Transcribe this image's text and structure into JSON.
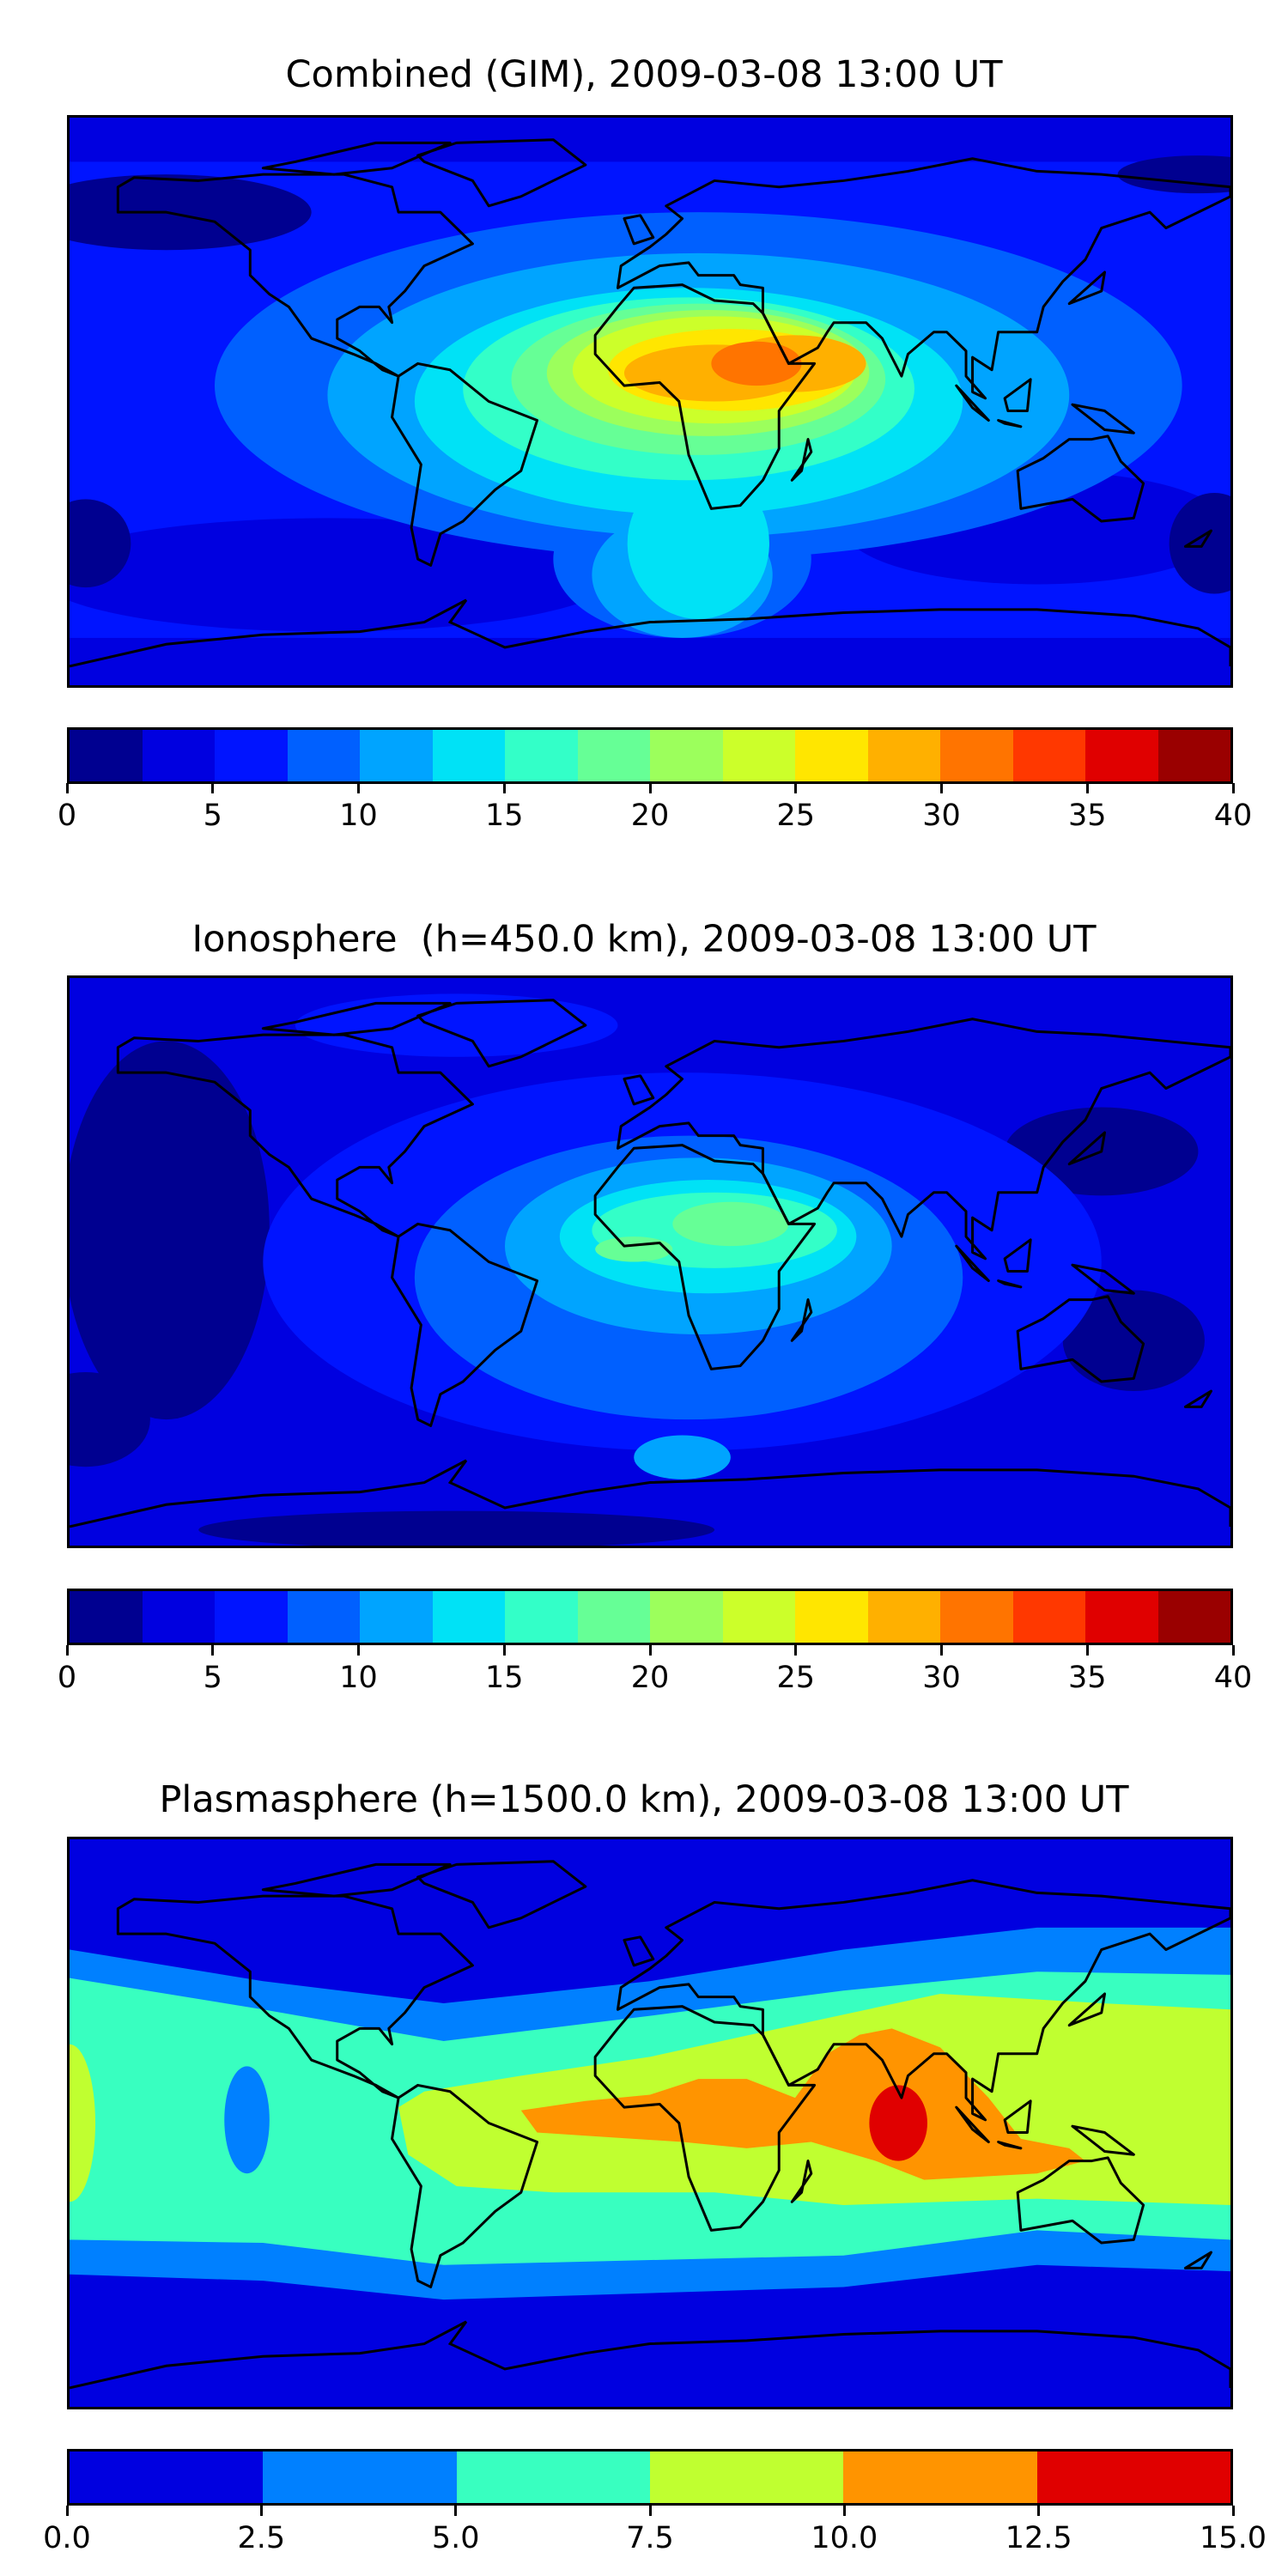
{
  "chart_data": [
    {
      "type": "heatmap",
      "title": "Combined (GIM), 2009-03-08 13:00 UT",
      "projection": "global map (lon -180..180, lat -90..90)",
      "colorbar": {
        "levels": [
          0,
          2.5,
          5,
          7.5,
          10,
          12.5,
          15,
          17.5,
          20,
          22.5,
          25,
          27.5,
          30,
          32.5,
          35,
          37.5,
          40
        ],
        "tick_values": [
          0,
          5,
          10,
          15,
          20,
          25,
          30,
          35,
          40
        ],
        "tick_labels": [
          "0",
          "5",
          "10",
          "15",
          "20",
          "25",
          "30",
          "35",
          "40"
        ],
        "colors": [
          "#000090",
          "#0000e0",
          "#0014ff",
          "#0060ff",
          "#00a4ff",
          "#00e2f6",
          "#33ffc8",
          "#66ff96",
          "#9cff5c",
          "#ccff2a",
          "#ffe600",
          "#ffb000",
          "#ff7400",
          "#ff3800",
          "#e00000",
          "#9a0000"
        ]
      },
      "peak_region": "Africa / Arabian Sea, ~30-32.5"
    },
    {
      "type": "heatmap",
      "title": "Ionosphere  (h=450.0 km), 2009-03-08 13:00 UT",
      "projection": "global map (lon -180..180, lat -90..90)",
      "colorbar": {
        "levels": [
          0,
          2.5,
          5,
          7.5,
          10,
          12.5,
          15,
          17.5,
          20,
          22.5,
          25,
          27.5,
          30,
          32.5,
          35,
          37.5,
          40
        ],
        "tick_values": [
          0,
          5,
          10,
          15,
          20,
          25,
          30,
          35,
          40
        ],
        "tick_labels": [
          "0",
          "5",
          "10",
          "15",
          "20",
          "25",
          "30",
          "35",
          "40"
        ],
        "colors": [
          "#000090",
          "#0000e0",
          "#0014ff",
          "#0060ff",
          "#00a4ff",
          "#00e2f6",
          "#33ffc8",
          "#66ff96",
          "#9cff5c",
          "#ccff2a",
          "#ffe600",
          "#ffb000",
          "#ff7400",
          "#ff3800",
          "#e00000",
          "#9a0000"
        ]
      },
      "peak_region": "Central Africa, ~20-22.5"
    },
    {
      "type": "heatmap",
      "title": "Plasmasphere (h=1500.0 km), 2009-03-08 13:00 UT",
      "projection": "global map (lon -180..180, lat -90..90)",
      "colorbar": {
        "levels": [
          0,
          2.5,
          5,
          7.5,
          10,
          12.5,
          15
        ],
        "tick_values": [
          0,
          2.5,
          5,
          7.5,
          10,
          12.5,
          15
        ],
        "tick_labels": [
          "0.0",
          "2.5",
          "5.0",
          "7.5",
          "10.0",
          "12.5",
          "15.0"
        ],
        "colors": [
          "#0000e0",
          "#0080ff",
          "#38ffc0",
          "#c0ff30",
          "#ff9400",
          "#e00000"
        ]
      },
      "peak_region": "Bay of Bengal / Sri Lanka, ~12.5-15"
    }
  ]
}
